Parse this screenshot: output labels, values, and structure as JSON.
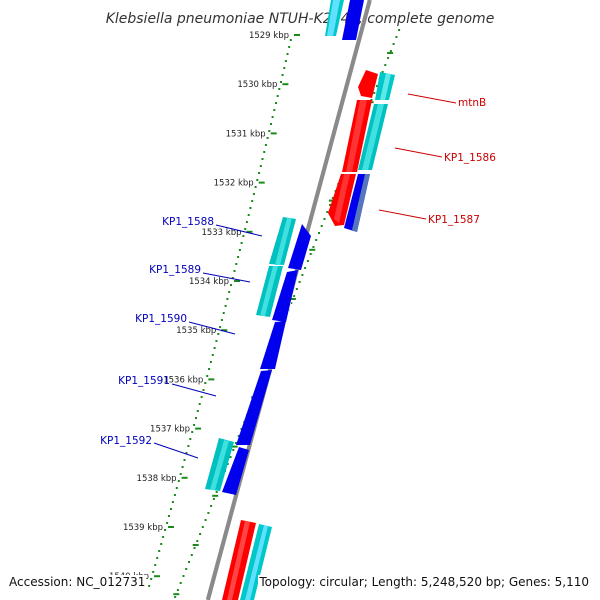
{
  "title": "Klebsiella pneumoniae NTUH-K2044, complete genome",
  "footer": {
    "accession": "Accession: NC_012731",
    "summary": "Topology: circular; Length: 5,248,520 bp; Genes: 5,110"
  },
  "colors": {
    "backbone": "#8a8a8a",
    "tick_dots": "#1a8a1a",
    "cds_reverse": "#ff0000",
    "cds_forward": "#0000ee",
    "gene_feature": "#00c8c8",
    "label_reverse": "#cc0000",
    "label_forward": "#0000bb"
  },
  "axis": {
    "unit": "kbp",
    "ticks": [
      {
        "value": 1529,
        "label": "1529 kbp"
      },
      {
        "value": 1530,
        "label": "1530 kbp"
      },
      {
        "value": 1531,
        "label": "1531 kbp"
      },
      {
        "value": 1532,
        "label": "1532 kbp"
      },
      {
        "value": 1533,
        "label": "1533 kbp"
      },
      {
        "value": 1534,
        "label": "1534 kbp"
      },
      {
        "value": 1535,
        "label": "1535 kbp"
      },
      {
        "value": 1536,
        "label": "1536 kbp"
      },
      {
        "value": 1537,
        "label": "1537 kbp"
      },
      {
        "value": 1538,
        "label": "1538 kbp"
      },
      {
        "value": 1539,
        "label": "1539 kbp"
      },
      {
        "value": 1540,
        "label": "1540 kbp"
      }
    ]
  },
  "genes": [
    {
      "label": "mtnB",
      "strand": "reverse"
    },
    {
      "label": "KP1_1586",
      "strand": "reverse"
    },
    {
      "label": "KP1_1587",
      "strand": "reverse"
    },
    {
      "label": "KP1_1588",
      "strand": "forward"
    },
    {
      "label": "KP1_1589",
      "strand": "forward"
    },
    {
      "label": "KP1_1590",
      "strand": "forward"
    },
    {
      "label": "KP1_1591",
      "strand": "forward"
    },
    {
      "label": "KP1_1592",
      "strand": "forward"
    }
  ]
}
